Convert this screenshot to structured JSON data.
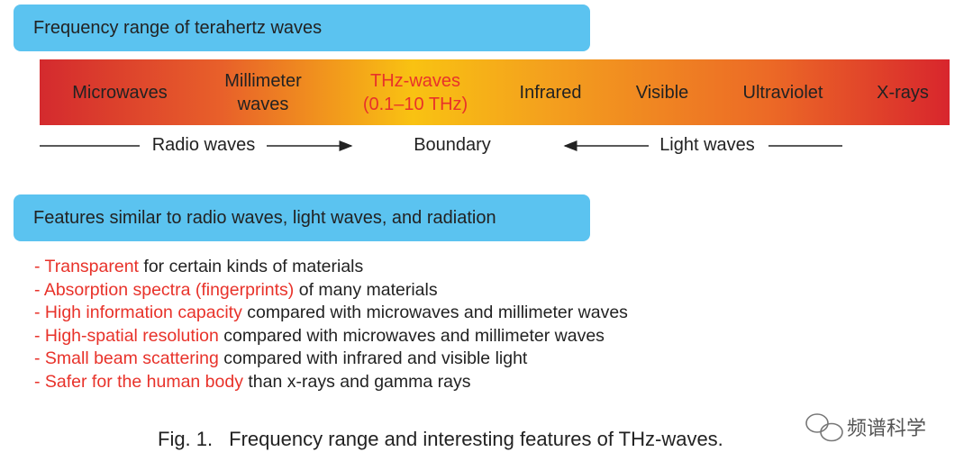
{
  "header": {
    "title": "Frequency range of terahertz waves"
  },
  "spectrum": {
    "bands": [
      {
        "lines": [
          "Microwaves"
        ]
      },
      {
        "lines": [
          "Millimeter",
          "waves"
        ]
      },
      {
        "lines": [
          "THz-waves",
          "(0.1–10 THz)"
        ]
      },
      {
        "lines": [
          "Infrared"
        ]
      },
      {
        "lines": [
          "Visible"
        ]
      },
      {
        "lines": [
          "Ultraviolet"
        ]
      },
      {
        "lines": [
          "X-rays"
        ]
      }
    ]
  },
  "regions": {
    "radio": "Radio waves",
    "boundary": "Boundary",
    "light": "Light waves"
  },
  "features": {
    "title": "Features similar to radio waves, light waves, and radiation",
    "items": [
      {
        "highlight": "- Transparent",
        "rest": "for certain kinds of materials"
      },
      {
        "highlight": "- Absorption spectra (fingerprints)",
        "rest": "of many materials"
      },
      {
        "highlight": "- High information capacity",
        "rest": "compared with microwaves and millimeter waves"
      },
      {
        "highlight": "- High-spatial resolution",
        "rest": "compared with microwaves and millimeter waves"
      },
      {
        "highlight": "- Small beam scattering",
        "rest": "compared with infrared and visible light"
      },
      {
        "highlight": "- Safer for the human body",
        "rest": "than x-rays and gamma rays"
      }
    ]
  },
  "caption": {
    "label": "Fig. 1.",
    "text": "Frequency range and interesting features of THz-waves."
  },
  "watermark": "频谱科学"
}
